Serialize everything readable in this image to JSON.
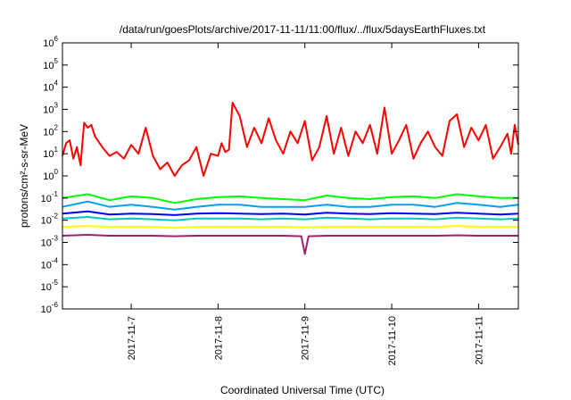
{
  "chart_data": {
    "type": "line",
    "title": "/data/run/goesPlots/archive/2017-11-11/11:00/flux/../flux/5daysEarthFluxes.txt",
    "xlabel": "Coordinated Universal Time (UTC)",
    "ylabel": "protons/cm²-s-sr-MeV",
    "y_scale": "log",
    "ylim": [
      1e-06,
      1000000.0
    ],
    "xlim": [
      "2017-11-06T05:00",
      "2017-11-11T11:00"
    ],
    "grid": false,
    "legend": "none",
    "y_ticks": [
      {
        "base": "10",
        "exp": "-6",
        "value": 1e-06
      },
      {
        "base": "10",
        "exp": "-5",
        "value": 1e-05
      },
      {
        "base": "10",
        "exp": "-4",
        "value": 0.0001
      },
      {
        "base": "10",
        "exp": "-3",
        "value": 0.001
      },
      {
        "base": "10",
        "exp": "-2",
        "value": 0.01
      },
      {
        "base": "10",
        "exp": "-1",
        "value": 0.1
      },
      {
        "base": "10",
        "exp": "0",
        "value": 1
      },
      {
        "base": "10",
        "exp": "1",
        "value": 10
      },
      {
        "base": "10",
        "exp": "2",
        "value": 100
      },
      {
        "base": "10",
        "exp": "3",
        "value": 1000
      },
      {
        "base": "10",
        "exp": "4",
        "value": 10000
      },
      {
        "base": "10",
        "exp": "5",
        "value": 100000
      },
      {
        "base": "10",
        "exp": "6",
        "value": 1000000
      }
    ],
    "x_ticks": [
      {
        "label": "2017-11-7",
        "value": "2017-11-07T00:00"
      },
      {
        "label": "2017-11-8",
        "value": "2017-11-08T00:00"
      },
      {
        "label": "2017-11-9",
        "value": "2017-11-09T00:00"
      },
      {
        "label": "2017-11-10",
        "value": "2017-11-10T00:00"
      },
      {
        "label": "2017-11-11",
        "value": "2017-11-11T00:00"
      }
    ],
    "series": [
      {
        "color": "#ff0000",
        "x": [
          "2017-11-06T05:00",
          "2017-11-06T06:00",
          "2017-11-06T07:00",
          "2017-11-06T08:00",
          "2017-11-06T09:00",
          "2017-11-06T10:00",
          "2017-11-06T11:00",
          "2017-11-06T12:00",
          "2017-11-06T13:00",
          "2017-11-06T14:00",
          "2017-11-06T16:00",
          "2017-11-06T18:00",
          "2017-11-06T20:00",
          "2017-11-06T22:00",
          "2017-11-07T00:00",
          "2017-11-07T02:00",
          "2017-11-07T04:00",
          "2017-11-07T06:00",
          "2017-11-07T08:00",
          "2017-11-07T10:00",
          "2017-11-07T12:00",
          "2017-11-07T14:00",
          "2017-11-07T16:00",
          "2017-11-07T18:00",
          "2017-11-07T20:00",
          "2017-11-07T22:00",
          "2017-11-08T00:00",
          "2017-11-08T01:00",
          "2017-11-08T02:00",
          "2017-11-08T03:00",
          "2017-11-08T04:00",
          "2017-11-08T06:00",
          "2017-11-08T08:00",
          "2017-11-08T10:00",
          "2017-11-08T12:00",
          "2017-11-08T14:00",
          "2017-11-08T16:00",
          "2017-11-08T18:00",
          "2017-11-08T20:00",
          "2017-11-08T22:00",
          "2017-11-09T00:00",
          "2017-11-09T02:00",
          "2017-11-09T04:00",
          "2017-11-09T06:00",
          "2017-11-09T08:00",
          "2017-11-09T10:00",
          "2017-11-09T12:00",
          "2017-11-09T14:00",
          "2017-11-09T16:00",
          "2017-11-09T18:00",
          "2017-11-09T20:00",
          "2017-11-09T22:00",
          "2017-11-10T00:00",
          "2017-11-10T02:00",
          "2017-11-10T04:00",
          "2017-11-10T06:00",
          "2017-11-10T08:00",
          "2017-11-10T10:00",
          "2017-11-10T12:00",
          "2017-11-10T14:00",
          "2017-11-10T16:00",
          "2017-11-10T18:00",
          "2017-11-10T20:00",
          "2017-11-10T22:00",
          "2017-11-11T00:00",
          "2017-11-11T02:00",
          "2017-11-11T04:00",
          "2017-11-11T06:00",
          "2017-11-11T08:00",
          "2017-11-11T09:00",
          "2017-11-11T10:00",
          "2017-11-11T11:00"
        ],
        "y": [
          8,
          30,
          40,
          6,
          20,
          3,
          250,
          150,
          200,
          60,
          20,
          8,
          12,
          6,
          25,
          10,
          150,
          8,
          2,
          4,
          1,
          3,
          5,
          20,
          1,
          10,
          8,
          30,
          12,
          15,
          2000,
          500,
          20,
          150,
          30,
          400,
          40,
          10,
          100,
          30,
          300,
          5,
          20,
          500,
          10,
          150,
          8,
          100,
          30,
          200,
          10,
          1200,
          10,
          40,
          200,
          6,
          30,
          100,
          20,
          8,
          300,
          600,
          20,
          150,
          40,
          200,
          6,
          20,
          80,
          10,
          200,
          25
        ]
      },
      {
        "color": "#00ff00",
        "x": [
          "2017-11-06T05:00",
          "2017-11-06T12:00",
          "2017-11-06T18:00",
          "2017-11-07T00:00",
          "2017-11-07T06:00",
          "2017-11-07T12:00",
          "2017-11-07T18:00",
          "2017-11-08T00:00",
          "2017-11-08T06:00",
          "2017-11-08T12:00",
          "2017-11-08T18:00",
          "2017-11-09T00:00",
          "2017-11-09T06:00",
          "2017-11-09T12:00",
          "2017-11-09T18:00",
          "2017-11-10T00:00",
          "2017-11-10T06:00",
          "2017-11-10T12:00",
          "2017-11-10T18:00",
          "2017-11-11T00:00",
          "2017-11-11T06:00",
          "2017-11-11T11:00"
        ],
        "y": [
          0.1,
          0.15,
          0.08,
          0.12,
          0.1,
          0.06,
          0.09,
          0.11,
          0.12,
          0.1,
          0.09,
          0.08,
          0.13,
          0.1,
          0.09,
          0.11,
          0.12,
          0.1,
          0.15,
          0.12,
          0.1,
          0.1
        ]
      },
      {
        "color": "#00a0ff",
        "x": [
          "2017-11-06T05:00",
          "2017-11-06T12:00",
          "2017-11-06T18:00",
          "2017-11-07T00:00",
          "2017-11-07T06:00",
          "2017-11-07T12:00",
          "2017-11-07T18:00",
          "2017-11-08T00:00",
          "2017-11-08T06:00",
          "2017-11-08T12:00",
          "2017-11-08T18:00",
          "2017-11-09T00:00",
          "2017-11-09T06:00",
          "2017-11-09T12:00",
          "2017-11-09T18:00",
          "2017-11-10T00:00",
          "2017-11-10T06:00",
          "2017-11-10T12:00",
          "2017-11-10T18:00",
          "2017-11-11T00:00",
          "2017-11-11T06:00",
          "2017-11-11T11:00"
        ],
        "y": [
          0.04,
          0.07,
          0.04,
          0.05,
          0.04,
          0.03,
          0.04,
          0.05,
          0.05,
          0.04,
          0.04,
          0.04,
          0.05,
          0.04,
          0.04,
          0.05,
          0.05,
          0.04,
          0.06,
          0.05,
          0.04,
          0.05
        ]
      },
      {
        "color": "#0000ff",
        "x": [
          "2017-11-06T05:00",
          "2017-11-06T12:00",
          "2017-11-06T18:00",
          "2017-11-07T00:00",
          "2017-11-07T06:00",
          "2017-11-07T12:00",
          "2017-11-07T18:00",
          "2017-11-08T00:00",
          "2017-11-08T06:00",
          "2017-11-08T12:00",
          "2017-11-08T18:00",
          "2017-11-09T00:00",
          "2017-11-09T06:00",
          "2017-11-09T12:00",
          "2017-11-09T18:00",
          "2017-11-10T00:00",
          "2017-11-10T06:00",
          "2017-11-10T12:00",
          "2017-11-10T18:00",
          "2017-11-11T00:00",
          "2017-11-11T06:00",
          "2017-11-11T11:00"
        ],
        "y": [
          0.02,
          0.025,
          0.018,
          0.02,
          0.019,
          0.017,
          0.02,
          0.021,
          0.02,
          0.019,
          0.02,
          0.018,
          0.022,
          0.02,
          0.019,
          0.021,
          0.02,
          0.019,
          0.022,
          0.02,
          0.018,
          0.02
        ]
      },
      {
        "color": "#00c8c8",
        "x": [
          "2017-11-06T05:00",
          "2017-11-06T12:00",
          "2017-11-06T18:00",
          "2017-11-07T00:00",
          "2017-11-07T06:00",
          "2017-11-07T12:00",
          "2017-11-07T18:00",
          "2017-11-08T00:00",
          "2017-11-08T06:00",
          "2017-11-08T12:00",
          "2017-11-08T18:00",
          "2017-11-09T00:00",
          "2017-11-09T06:00",
          "2017-11-09T12:00",
          "2017-11-09T18:00",
          "2017-11-10T00:00",
          "2017-11-10T06:00",
          "2017-11-10T12:00",
          "2017-11-10T18:00",
          "2017-11-11T00:00",
          "2017-11-11T06:00",
          "2017-11-11T11:00"
        ],
        "y": [
          0.012,
          0.014,
          0.011,
          0.012,
          0.011,
          0.01,
          0.012,
          0.012,
          0.012,
          0.011,
          0.012,
          0.011,
          0.013,
          0.012,
          0.011,
          0.012,
          0.012,
          0.011,
          0.013,
          0.012,
          0.011,
          0.012
        ]
      },
      {
        "color": "#ffff00",
        "x": [
          "2017-11-06T05:00",
          "2017-11-06T12:00",
          "2017-11-06T18:00",
          "2017-11-07T00:00",
          "2017-11-07T06:00",
          "2017-11-07T12:00",
          "2017-11-07T18:00",
          "2017-11-08T00:00",
          "2017-11-08T06:00",
          "2017-11-08T12:00",
          "2017-11-08T18:00",
          "2017-11-09T00:00",
          "2017-11-09T06:00",
          "2017-11-09T12:00",
          "2017-11-09T18:00",
          "2017-11-10T00:00",
          "2017-11-10T06:00",
          "2017-11-10T12:00",
          "2017-11-10T18:00",
          "2017-11-11T00:00",
          "2017-11-11T06:00",
          "2017-11-11T11:00"
        ],
        "y": [
          0.005,
          0.0055,
          0.005,
          0.005,
          0.005,
          0.0045,
          0.005,
          0.005,
          0.005,
          0.005,
          0.005,
          0.0048,
          0.005,
          0.005,
          0.005,
          0.005,
          0.005,
          0.005,
          0.0055,
          0.005,
          0.005,
          0.005
        ]
      },
      {
        "color": "#a0206e",
        "x": [
          "2017-11-06T05:00",
          "2017-11-06T12:00",
          "2017-11-06T18:00",
          "2017-11-07T00:00",
          "2017-11-07T06:00",
          "2017-11-07T12:00",
          "2017-11-07T18:00",
          "2017-11-08T00:00",
          "2017-11-08T06:00",
          "2017-11-08T12:00",
          "2017-11-08T18:00",
          "2017-11-08T23:00",
          "2017-11-09T00:00",
          "2017-11-09T01:00",
          "2017-11-09T06:00",
          "2017-11-09T12:00",
          "2017-11-09T18:00",
          "2017-11-10T00:00",
          "2017-11-10T06:00",
          "2017-11-10T12:00",
          "2017-11-10T18:00",
          "2017-11-11T00:00",
          "2017-11-11T06:00",
          "2017-11-11T11:00"
        ],
        "y": [
          0.002,
          0.0022,
          0.002,
          0.002,
          0.002,
          0.0019,
          0.002,
          0.002,
          0.002,
          0.002,
          0.002,
          0.0019,
          0.0003,
          0.0019,
          0.002,
          0.002,
          0.002,
          0.002,
          0.002,
          0.002,
          0.0021,
          0.002,
          0.002,
          0.002
        ]
      }
    ]
  }
}
